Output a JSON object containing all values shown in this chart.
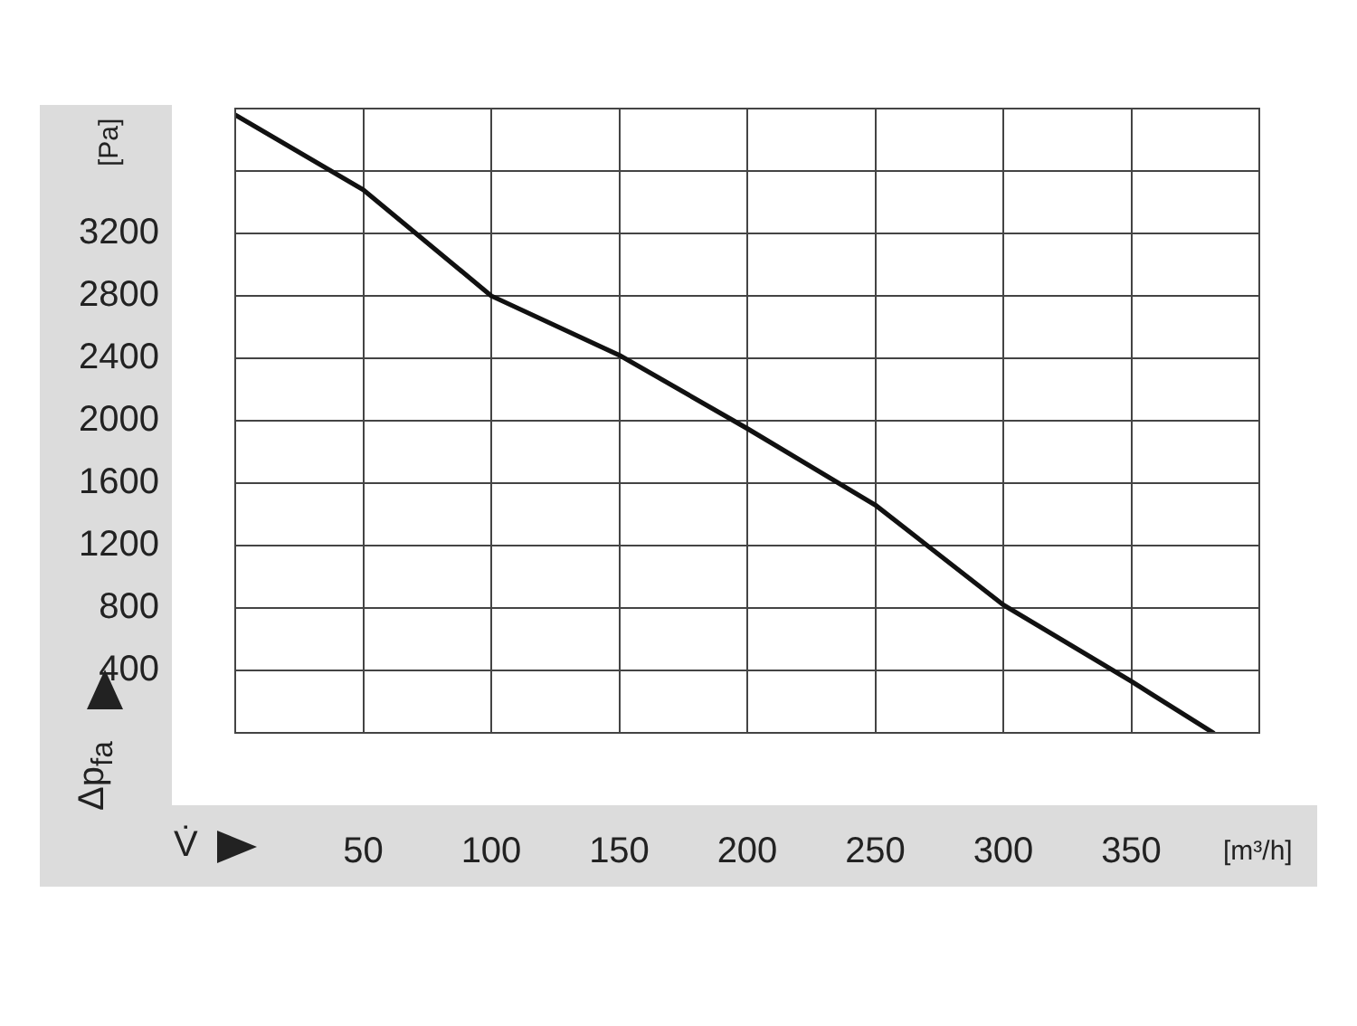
{
  "chart_data": {
    "type": "line",
    "xlabel": "V̇",
    "ylabel": "Δp$_{fa}$",
    "annotations": [
      "[Pa]",
      "[m³/h]"
    ],
    "x": [
      0,
      50,
      100,
      150,
      200,
      250,
      300,
      350,
      382
    ],
    "series": [
      {
        "color": "#111111",
        "values": [
          3960,
          3480,
          2800,
          2420,
          1950,
          1460,
          820,
          330,
          0
        ]
      }
    ],
    "xlim": [
      0,
      400
    ],
    "xticks": [
      {
        "value": 0,
        "label": null
      },
      50,
      100,
      150,
      200,
      250,
      300,
      350,
      {
        "value": 400,
        "label": null
      }
    ],
    "ylim": [
      0,
      4000
    ],
    "yticks": [
      {
        "value": 0,
        "label": null
      },
      400,
      800,
      1200,
      1600,
      2000,
      2400,
      2800,
      3200,
      {
        "value": 3600,
        "label": null
      },
      {
        "value": 4000,
        "label": null
      }
    ],
    "grid": true,
    "legend": false,
    "marker": "none",
    "line_style": "solid"
  }
}
